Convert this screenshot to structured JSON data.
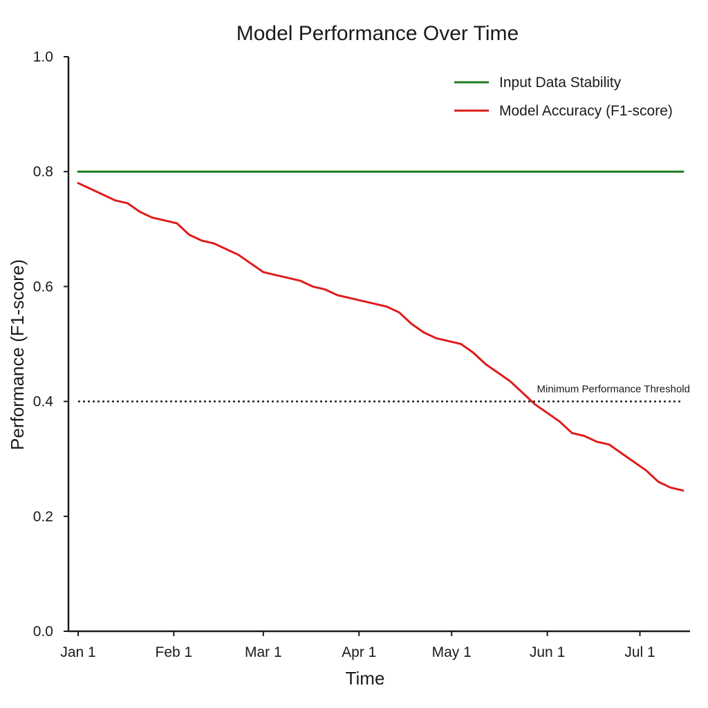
{
  "chart_data": {
    "type": "line",
    "title": "Model Performance Over Time",
    "xlabel": "Time",
    "ylabel": "Performance (F1-score)",
    "ylim": [
      0,
      1.0
    ],
    "xlim": [
      "2024-01-01",
      "2024-07-15"
    ],
    "yticks": [
      "0.0",
      "0.2",
      "0.4",
      "0.6",
      "0.8",
      "1.0"
    ],
    "xticks": [
      {
        "label": "Jan 1",
        "date": "2024-01-01"
      },
      {
        "label": "Feb 1",
        "date": "2024-02-01"
      },
      {
        "label": "Mar 1",
        "date": "2024-03-01"
      },
      {
        "label": "Apr 1",
        "date": "2024-04-01"
      },
      {
        "label": "May 1",
        "date": "2024-05-01"
      },
      {
        "label": "Jun 1",
        "date": "2024-06-01"
      },
      {
        "label": "Jul 1",
        "date": "2024-07-01"
      }
    ],
    "grid": false,
    "legend_position": "top-right",
    "series": [
      {
        "name": "Input Data Stability",
        "color": "#1e7a1e",
        "style": "solid",
        "x": [
          "2024-01-01",
          "2024-07-15"
        ],
        "y": [
          0.8,
          0.8
        ]
      },
      {
        "name": "Model Accuracy (F1-score)",
        "color": "#e01b1b",
        "style": "solid",
        "x": [
          "2024-01-01",
          "2024-01-05",
          "2024-01-09",
          "2024-01-13",
          "2024-01-17",
          "2024-01-21",
          "2024-01-25",
          "2024-01-29",
          "2024-02-02",
          "2024-02-06",
          "2024-02-10",
          "2024-02-14",
          "2024-02-18",
          "2024-02-22",
          "2024-02-26",
          "2024-03-01",
          "2024-03-05",
          "2024-03-09",
          "2024-03-13",
          "2024-03-17",
          "2024-03-21",
          "2024-03-25",
          "2024-03-29",
          "2024-04-02",
          "2024-04-06",
          "2024-04-10",
          "2024-04-14",
          "2024-04-18",
          "2024-04-22",
          "2024-04-26",
          "2024-04-30",
          "2024-05-04",
          "2024-05-08",
          "2024-05-12",
          "2024-05-16",
          "2024-05-20",
          "2024-05-24",
          "2024-05-28",
          "2024-06-01",
          "2024-06-05",
          "2024-06-09",
          "2024-06-13",
          "2024-06-17",
          "2024-06-21",
          "2024-06-25",
          "2024-06-29",
          "2024-07-03",
          "2024-07-07",
          "2024-07-11",
          "2024-07-15"
        ],
        "y": [
          0.78,
          0.77,
          0.76,
          0.75,
          0.745,
          0.73,
          0.72,
          0.715,
          0.71,
          0.69,
          0.68,
          0.675,
          0.665,
          0.655,
          0.64,
          0.625,
          0.62,
          0.615,
          0.61,
          0.6,
          0.595,
          0.585,
          0.58,
          0.575,
          0.57,
          0.565,
          0.555,
          0.535,
          0.52,
          0.51,
          0.505,
          0.5,
          0.485,
          0.465,
          0.45,
          0.435,
          0.415,
          0.395,
          0.38,
          0.365,
          0.345,
          0.34,
          0.33,
          0.325,
          0.31,
          0.295,
          0.28,
          0.26,
          0.25,
          0.245
        ]
      },
      {
        "name": "Minimum Performance Threshold",
        "color": "#222222",
        "style": "dotted",
        "x": [
          "2024-01-01",
          "2024-07-15"
        ],
        "y": [
          0.4,
          0.4
        ]
      }
    ],
    "annotations": [
      {
        "text": "Minimum Performance Threshold",
        "x": "2024-07-15",
        "y": 0.4
      }
    ]
  }
}
